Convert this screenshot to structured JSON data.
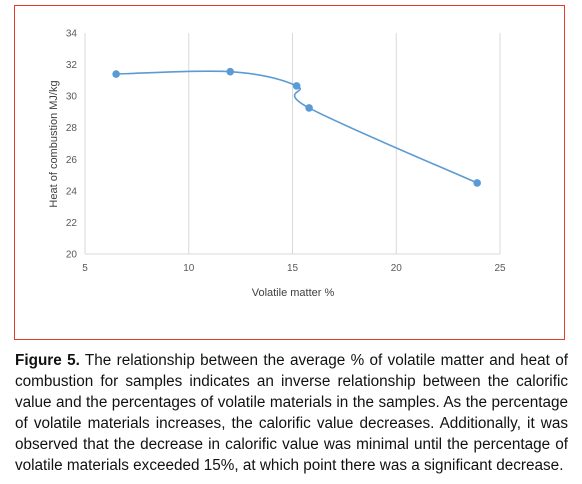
{
  "chart_data": {
    "type": "line",
    "title": "",
    "xlabel": "Volatile matter %",
    "ylabel": "Heat of combustion MJ/kg",
    "xlim": [
      5,
      25
    ],
    "ylim": [
      20,
      34
    ],
    "xticks": [
      5,
      10,
      15,
      20,
      25
    ],
    "yticks": [
      20,
      22,
      24,
      26,
      28,
      30,
      32,
      34
    ],
    "grid": "vertical",
    "legend": "none",
    "smoothed": true,
    "series": [
      {
        "x": [
          6.5,
          12.0,
          15.2,
          15.8,
          23.9
        ],
        "y": [
          31.4,
          31.55,
          30.65,
          29.25,
          24.5
        ],
        "color": "#5b9bd5"
      }
    ]
  },
  "caption": {
    "label": "Figure 5.",
    "text": " The relationship between the average % of volatile matter and heat of combustion for samples indicates an inverse relationship between the calorific value and the percentages of volatile materials in the samples. As the percentage of volatile materials increases, the calorific value decreases. Additionally, it was observed that the decrease in calorific value was minimal until the percentage of volatile materials exceeded 15%, at which point there was a significant decrease."
  },
  "colors": {
    "frame": "#e03b2b",
    "grid": "#d9d9d9",
    "axis_text": "#595959"
  }
}
